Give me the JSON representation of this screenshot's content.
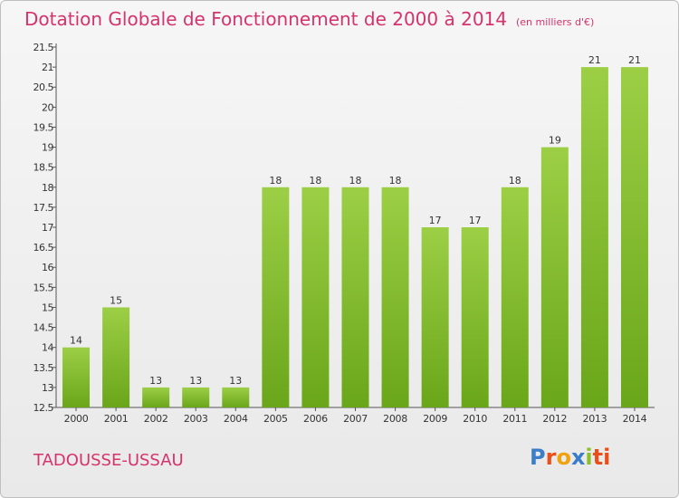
{
  "header": {
    "title": "Dotation Globale de Fonctionnement de 2000 à 2014",
    "unit": "(en milliers d'€)"
  },
  "footer": {
    "commune": "TADOUSSE-USSAU",
    "logo_letters": [
      "P",
      "r",
      "o",
      "x",
      "i",
      "ti"
    ]
  },
  "colors": {
    "title": "#d6336c",
    "bar_top": "#9ccf45",
    "bar_bottom": "#6aa61a"
  },
  "chart_data": {
    "type": "bar",
    "categories": [
      "2000",
      "2001",
      "2002",
      "2003",
      "2004",
      "2005",
      "2006",
      "2007",
      "2008",
      "2009",
      "2010",
      "2011",
      "2012",
      "2013",
      "2014"
    ],
    "values": [
      14,
      15,
      13,
      13,
      13,
      18,
      18,
      18,
      18,
      17,
      17,
      18,
      19,
      21,
      21
    ],
    "data_labels": [
      "14",
      "15",
      "13",
      "13",
      "13",
      "18",
      "18",
      "18",
      "18",
      "17",
      "17",
      "18",
      "19",
      "21",
      "21"
    ],
    "ylim": [
      12.5,
      21.5
    ],
    "yticks": [
      "12.5",
      "13",
      "13.5",
      "14",
      "14.5",
      "15",
      "15.5",
      "16",
      "16.5",
      "17",
      "17.5",
      "18",
      "18.5",
      "19",
      "19.5",
      "20",
      "20.5",
      "21",
      "21.5"
    ],
    "grid": false,
    "xlabel": "",
    "ylabel": ""
  }
}
